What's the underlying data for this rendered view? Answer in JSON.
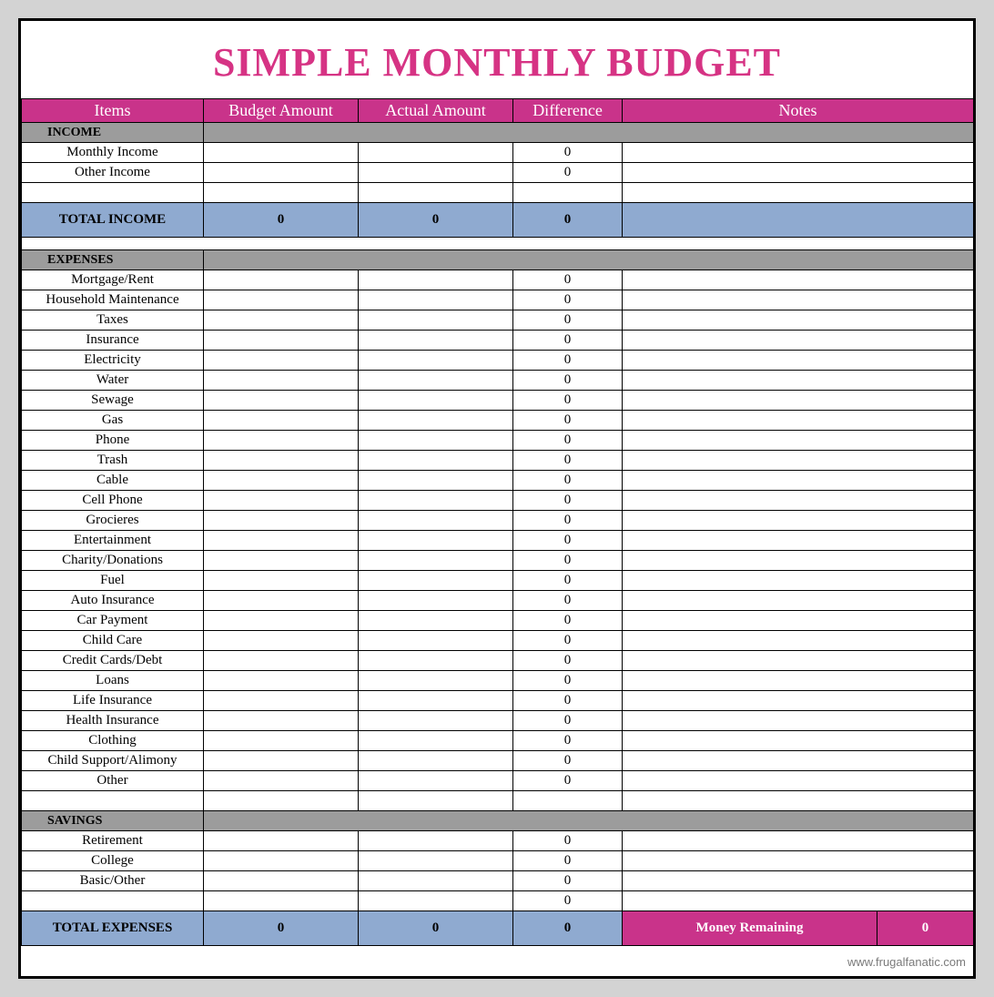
{
  "title": {
    "text": "SIMPLE MONTHLY BUDGET",
    "color": "#d63384",
    "fontsize": 44
  },
  "colors": {
    "header_bg": "#c9338a",
    "header_text": "#ffffff",
    "section_bg": "#9c9c9c",
    "total_bg": "#8faad0",
    "money_bg": "#c9338a",
    "money_text": "#ffffff",
    "page_bg": "#d3d3d3",
    "border": "#000000",
    "sheet_bg": "#ffffff"
  },
  "columns": [
    "Items",
    "Budget Amount",
    "Actual Amount",
    "Difference",
    "Notes"
  ],
  "sections": [
    {
      "name": "INCOME",
      "rows": [
        {
          "label": "Monthly Income",
          "budget": "",
          "actual": "",
          "diff": "0",
          "notes": ""
        },
        {
          "label": "Other Income",
          "budget": "",
          "actual": "",
          "diff": "0",
          "notes": ""
        },
        {
          "label": "",
          "budget": "",
          "actual": "",
          "diff": "",
          "notes": ""
        }
      ],
      "total": {
        "label": "TOTAL INCOME",
        "budget": "0",
        "actual": "0",
        "diff": "0",
        "notes": ""
      },
      "show_total": true,
      "spacer_after": true
    },
    {
      "name": "EXPENSES",
      "rows": [
        {
          "label": "Mortgage/Rent",
          "budget": "",
          "actual": "",
          "diff": "0",
          "notes": ""
        },
        {
          "label": "Household Maintenance",
          "budget": "",
          "actual": "",
          "diff": "0",
          "notes": ""
        },
        {
          "label": "Taxes",
          "budget": "",
          "actual": "",
          "diff": "0",
          "notes": ""
        },
        {
          "label": "Insurance",
          "budget": "",
          "actual": "",
          "diff": "0",
          "notes": ""
        },
        {
          "label": "Electricity",
          "budget": "",
          "actual": "",
          "diff": "0",
          "notes": ""
        },
        {
          "label": "Water",
          "budget": "",
          "actual": "",
          "diff": "0",
          "notes": ""
        },
        {
          "label": "Sewage",
          "budget": "",
          "actual": "",
          "diff": "0",
          "notes": ""
        },
        {
          "label": "Gas",
          "budget": "",
          "actual": "",
          "diff": "0",
          "notes": ""
        },
        {
          "label": "Phone",
          "budget": "",
          "actual": "",
          "diff": "0",
          "notes": ""
        },
        {
          "label": "Trash",
          "budget": "",
          "actual": "",
          "diff": "0",
          "notes": ""
        },
        {
          "label": "Cable",
          "budget": "",
          "actual": "",
          "diff": "0",
          "notes": ""
        },
        {
          "label": "Cell Phone",
          "budget": "",
          "actual": "",
          "diff": "0",
          "notes": ""
        },
        {
          "label": "Grocieres",
          "budget": "",
          "actual": "",
          "diff": "0",
          "notes": ""
        },
        {
          "label": "Entertainment",
          "budget": "",
          "actual": "",
          "diff": "0",
          "notes": ""
        },
        {
          "label": "Charity/Donations",
          "budget": "",
          "actual": "",
          "diff": "0",
          "notes": ""
        },
        {
          "label": "Fuel",
          "budget": "",
          "actual": "",
          "diff": "0",
          "notes": ""
        },
        {
          "label": "Auto Insurance",
          "budget": "",
          "actual": "",
          "diff": "0",
          "notes": ""
        },
        {
          "label": "Car Payment",
          "budget": "",
          "actual": "",
          "diff": "0",
          "notes": ""
        },
        {
          "label": "Child Care",
          "budget": "",
          "actual": "",
          "diff": "0",
          "notes": ""
        },
        {
          "label": "Credit Cards/Debt",
          "budget": "",
          "actual": "",
          "diff": "0",
          "notes": ""
        },
        {
          "label": "Loans",
          "budget": "",
          "actual": "",
          "diff": "0",
          "notes": ""
        },
        {
          "label": "Life Insurance",
          "budget": "",
          "actual": "",
          "diff": "0",
          "notes": ""
        },
        {
          "label": "Health Insurance",
          "budget": "",
          "actual": "",
          "diff": "0",
          "notes": ""
        },
        {
          "label": "Clothing",
          "budget": "",
          "actual": "",
          "diff": "0",
          "notes": ""
        },
        {
          "label": "Child Support/Alimony",
          "budget": "",
          "actual": "",
          "diff": "0",
          "notes": ""
        },
        {
          "label": "Other",
          "budget": "",
          "actual": "",
          "diff": "0",
          "notes": ""
        },
        {
          "label": "",
          "budget": "",
          "actual": "",
          "diff": "",
          "notes": ""
        }
      ],
      "show_total": false,
      "spacer_after": false
    },
    {
      "name": "SAVINGS",
      "rows": [
        {
          "label": "Retirement",
          "budget": "",
          "actual": "",
          "diff": "0",
          "notes": ""
        },
        {
          "label": "College",
          "budget": "",
          "actual": "",
          "diff": "0",
          "notes": ""
        },
        {
          "label": "Basic/Other",
          "budget": "",
          "actual": "",
          "diff": "0",
          "notes": ""
        },
        {
          "label": "",
          "budget": "",
          "actual": "",
          "diff": "0",
          "notes": ""
        }
      ],
      "show_total": false,
      "spacer_after": false
    }
  ],
  "final_total": {
    "label": "TOTAL EXPENSES",
    "budget": "0",
    "actual": "0",
    "diff": "0",
    "money_label": "Money Remaining",
    "money_value": "0"
  },
  "footer": "www.frugalfanatic.com"
}
